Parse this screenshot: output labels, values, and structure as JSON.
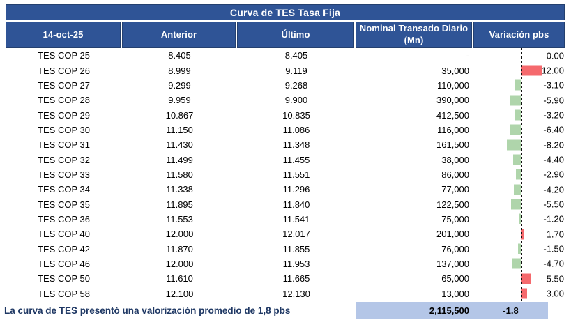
{
  "title": "Curva de TES Tasa Fija",
  "footer": {
    "note": "La curva de TES presentó una valorización promedio de 1,8 pbs",
    "total_nominal": "2,115,500",
    "avg_variation": "-1.8"
  },
  "colors": {
    "header_bg": "#2F5496",
    "highlight_bg": "#B4C6E7",
    "footer_text": "#1F3864",
    "positive_bar": "#F5696D",
    "negative_bar": "#AFD5AB"
  },
  "chart_data": {
    "type": "table",
    "title": "Curva de TES Tasa Fija",
    "columns": [
      "14-oct-25",
      "Anterior",
      "Último",
      "Nominal Transado Diario (Mn)",
      "Variación pbs"
    ],
    "variation_bar_chart": {
      "type": "bar",
      "orientation": "horizontal",
      "axis": "dashed zero line",
      "range": [
        -8.2,
        12.0
      ],
      "negative_color": "#AFD5AB",
      "positive_color": "#F5696D"
    },
    "rows": [
      {
        "label": "TES COP 25",
        "anterior": "8.405",
        "ultimo": "8.405",
        "nominal": "-",
        "variacion_label": "0.00",
        "variacion": 0.0
      },
      {
        "label": "TES COP 26",
        "anterior": "8.999",
        "ultimo": "9.119",
        "nominal": "35,000",
        "variacion_label": "12.00",
        "variacion": 12.0
      },
      {
        "label": "TES COP 27",
        "anterior": "9.299",
        "ultimo": "9.268",
        "nominal": "110,000",
        "variacion_label": "-3.10",
        "variacion": -3.1
      },
      {
        "label": "TES COP 28",
        "anterior": "9.959",
        "ultimo": "9.900",
        "nominal": "390,000",
        "variacion_label": "-5.90",
        "variacion": -5.9
      },
      {
        "label": "TES COP 29",
        "anterior": "10.867",
        "ultimo": "10.835",
        "nominal": "412,500",
        "variacion_label": "-3.20",
        "variacion": -3.2
      },
      {
        "label": "TES COP 30",
        "anterior": "11.150",
        "ultimo": "11.086",
        "nominal": "116,000",
        "variacion_label": "-6.40",
        "variacion": -6.4
      },
      {
        "label": "TES COP 31",
        "anterior": "11.430",
        "ultimo": "11.348",
        "nominal": "161,500",
        "variacion_label": "-8.20",
        "variacion": -8.2
      },
      {
        "label": "TES COP 32",
        "anterior": "11.499",
        "ultimo": "11.455",
        "nominal": "38,000",
        "variacion_label": "-4.40",
        "variacion": -4.4
      },
      {
        "label": "TES COP 33",
        "anterior": "11.580",
        "ultimo": "11.551",
        "nominal": "86,000",
        "variacion_label": "-2.90",
        "variacion": -2.9
      },
      {
        "label": "TES COP 34",
        "anterior": "11.338",
        "ultimo": "11.296",
        "nominal": "77,000",
        "variacion_label": "-4.20",
        "variacion": -4.2
      },
      {
        "label": "TES COP 35",
        "anterior": "11.895",
        "ultimo": "11.840",
        "nominal": "122,500",
        "variacion_label": "-5.50",
        "variacion": -5.5
      },
      {
        "label": "TES COP 36",
        "anterior": "11.553",
        "ultimo": "11.541",
        "nominal": "75,000",
        "variacion_label": "-1.20",
        "variacion": -1.2
      },
      {
        "label": "TES COP 40",
        "anterior": "12.000",
        "ultimo": "12.017",
        "nominal": "201,000",
        "variacion_label": "1.70",
        "variacion": 1.7
      },
      {
        "label": "TES COP 42",
        "anterior": "11.870",
        "ultimo": "11.855",
        "nominal": "76,000",
        "variacion_label": "-1.50",
        "variacion": -1.5
      },
      {
        "label": "TES COP 46",
        "anterior": "12.000",
        "ultimo": "11.953",
        "nominal": "137,000",
        "variacion_label": "-4.70",
        "variacion": -4.7
      },
      {
        "label": "TES COP 50",
        "anterior": "11.610",
        "ultimo": "11.665",
        "nominal": "65,000",
        "variacion_label": "5.50",
        "variacion": 5.5
      },
      {
        "label": "TES COP 58",
        "anterior": "12.100",
        "ultimo": "12.130",
        "nominal": "13,000",
        "variacion_label": "3.00",
        "variacion": 3.0
      }
    ],
    "summary": {
      "total_nominal": "2,115,500",
      "avg_variation_pbs": -1.8
    }
  }
}
